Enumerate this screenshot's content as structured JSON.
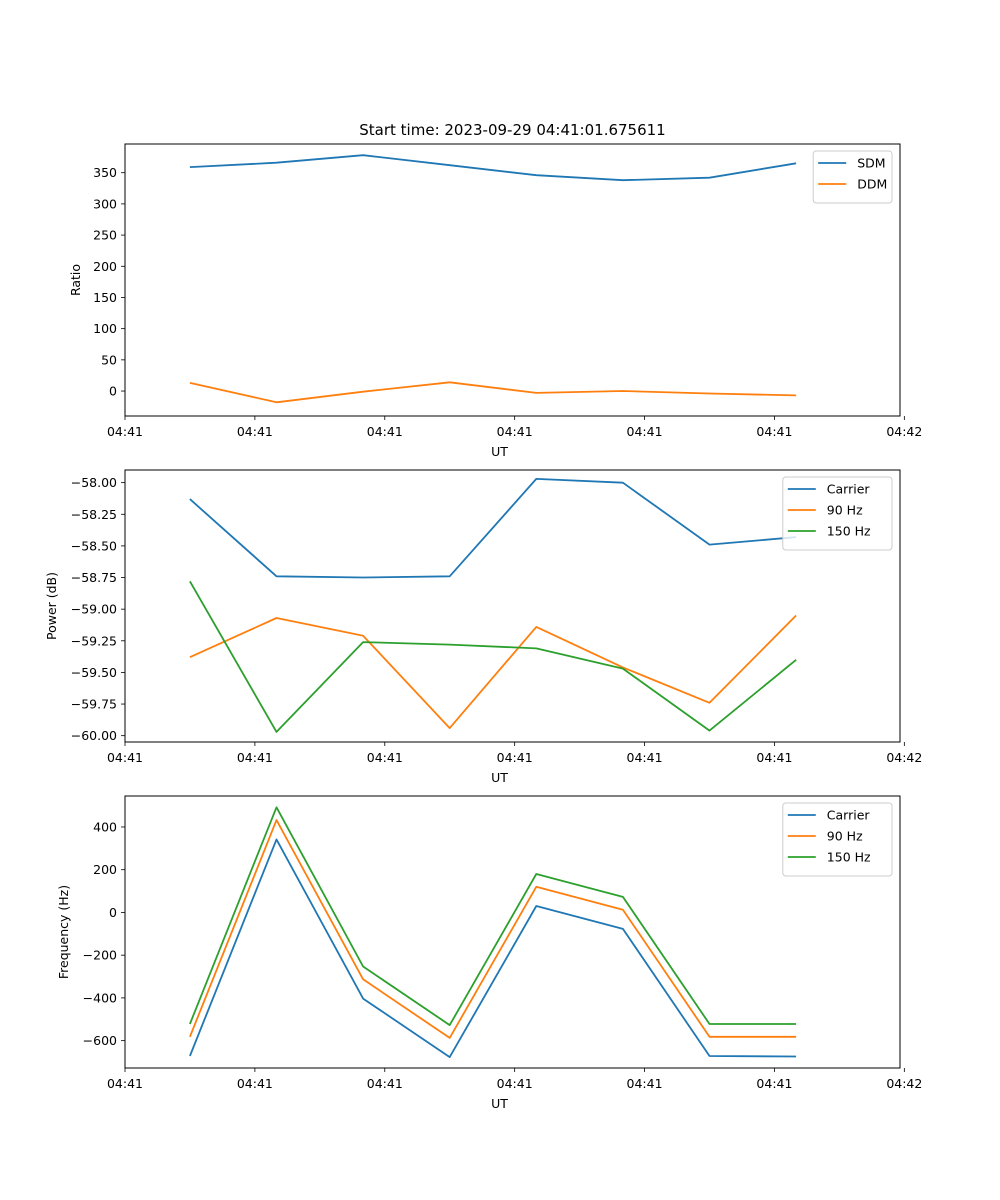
{
  "chart_data": [
    {
      "type": "line",
      "title": "Start time: 2023-09-29 04:41:01.675611",
      "xlabel": "UT",
      "ylabel": "Ratio",
      "x": [
        1,
        2,
        3,
        4,
        5,
        6,
        7,
        8
      ],
      "xlim": [
        0.25,
        9.2
      ],
      "x_ticks": [
        0.25,
        1.75,
        3.25,
        4.75,
        6.25,
        7.75,
        9.25
      ],
      "x_tick_labels": [
        "04:41",
        "04:41",
        "04:41",
        "04:41",
        "04:41",
        "04:41",
        "04:42"
      ],
      "ylim": [
        -40,
        396
      ],
      "y_ticks": [
        0,
        50,
        100,
        150,
        200,
        250,
        300,
        350
      ],
      "legend_position": "top-right",
      "series": [
        {
          "name": "SDM",
          "color": "#1f77b4",
          "values": [
            359,
            366,
            378,
            362,
            346,
            338,
            342,
            365
          ]
        },
        {
          "name": "DDM",
          "color": "#ff7f0e",
          "values": [
            13,
            -18,
            -1,
            14,
            -3,
            0,
            -4,
            -7
          ]
        }
      ]
    },
    {
      "type": "line",
      "title": "",
      "xlabel": "UT",
      "ylabel": "Power (dB)",
      "x": [
        1,
        2,
        3,
        4,
        5,
        6,
        7,
        8
      ],
      "xlim": [
        0.25,
        9.2
      ],
      "x_ticks": [
        0.25,
        1.75,
        3.25,
        4.75,
        6.25,
        7.75,
        9.25
      ],
      "x_tick_labels": [
        "04:41",
        "04:41",
        "04:41",
        "04:41",
        "04:41",
        "04:41",
        "04:42"
      ],
      "ylim": [
        -60.05,
        -57.9
      ],
      "y_ticks": [
        -60.0,
        -59.75,
        -59.5,
        -59.25,
        -59.0,
        -58.75,
        -58.5,
        -58.25,
        -58.0
      ],
      "y_tick_labels": [
        "−60.00",
        "−59.75",
        "−59.50",
        "−59.25",
        "−59.00",
        "−58.75",
        "−58.50",
        "−58.25",
        "−58.00"
      ],
      "legend_position": "top-right",
      "series": [
        {
          "name": "Carrier",
          "color": "#1f77b4",
          "values": [
            -58.13,
            -58.74,
            -58.75,
            -58.74,
            -57.97,
            -58.0,
            -58.49,
            -58.43
          ]
        },
        {
          "name": "90 Hz",
          "color": "#ff7f0e",
          "values": [
            -59.38,
            -59.07,
            -59.21,
            -59.94,
            -59.14,
            -59.46,
            -59.74,
            -59.05
          ]
        },
        {
          "name": "150 Hz",
          "color": "#2ca02c",
          "values": [
            -58.78,
            -59.97,
            -59.26,
            -59.28,
            -59.31,
            -59.47,
            -59.96,
            -59.4
          ]
        }
      ]
    },
    {
      "type": "line",
      "title": "",
      "xlabel": "UT",
      "ylabel": "Frequency (Hz)",
      "x": [
        1,
        2,
        3,
        4,
        5,
        6,
        7,
        8
      ],
      "xlim": [
        0.25,
        9.2
      ],
      "x_ticks": [
        0.25,
        1.75,
        3.25,
        4.75,
        6.25,
        7.75,
        9.25
      ],
      "x_tick_labels": [
        "04:41",
        "04:41",
        "04:41",
        "04:41",
        "04:41",
        "04:41",
        "04:42"
      ],
      "ylim": [
        -728,
        545
      ],
      "y_ticks": [
        -600,
        -400,
        -200,
        0,
        200,
        400
      ],
      "y_tick_labels": [
        "−600",
        "−400",
        "−200",
        "0",
        "200",
        "400"
      ],
      "legend_position": "top-right",
      "series": [
        {
          "name": "Carrier",
          "color": "#1f77b4",
          "values": [
            -672,
            342,
            -403,
            -677,
            30,
            -77,
            -672,
            -674
          ]
        },
        {
          "name": "90 Hz",
          "color": "#ff7f0e",
          "values": [
            -582,
            432,
            -313,
            -587,
            120,
            13,
            -582,
            -582
          ]
        },
        {
          "name": "150 Hz",
          "color": "#2ca02c",
          "values": [
            -522,
            492,
            -253,
            -527,
            180,
            73,
            -522,
            -522
          ]
        }
      ]
    }
  ]
}
